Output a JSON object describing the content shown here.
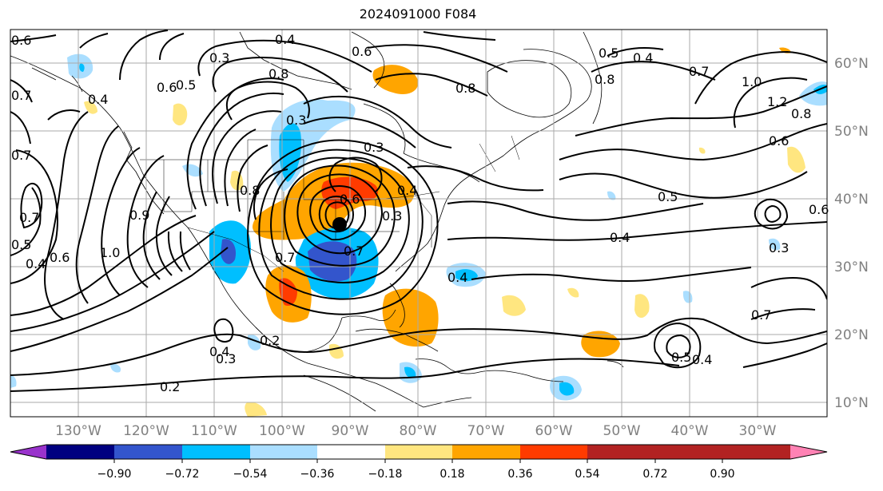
{
  "title": "2024091000 F084",
  "lat_labels": [
    "60°N",
    "50°N",
    "40°N",
    "30°N",
    "20°N",
    "10°N"
  ],
  "lon_labels": [
    "130°W",
    "120°W",
    "110°W",
    "100°W",
    "90°W",
    "80°W",
    "70°W",
    "60°W",
    "50°W",
    "40°W",
    "30°W"
  ],
  "colorbar": {
    "ticks": [
      "−0.90",
      "−0.72",
      "−0.54",
      "−0.36",
      "−0.18",
      "0.18",
      "0.36",
      "0.54",
      "0.72",
      "0.90"
    ],
    "colors": [
      "#9933cc",
      "#000080",
      "#3355cc",
      "#00bfff",
      "#aadeff",
      "#ffffff",
      "#ffe680",
      "#ffa500",
      "#ff3b00",
      "#b22222",
      "#ff82b4"
    ]
  },
  "contour_labels": [
    "0.6",
    "0.7",
    "0.4",
    "0.3",
    "0.6",
    "0.5",
    "0.8",
    "0.4",
    "0.6",
    "0.5",
    "0.4",
    "0.8",
    "0.8",
    "0.7",
    "1.0",
    "1.2",
    "0.8",
    "0.6",
    "0.7",
    "0.7",
    "0.5",
    "0.4",
    "1.0",
    "0.6",
    "0.9",
    "0.8",
    "0.3",
    "0.6",
    "0.4",
    "0.3",
    "0.7",
    "0.7",
    "0.5",
    "0.4",
    "0.4",
    "0.6",
    "0.3",
    "0.4",
    "0.2",
    "0.3",
    "0.2",
    "0.3",
    "0.5",
    "0.4",
    "0.7"
  ],
  "marker": "storm-center"
}
